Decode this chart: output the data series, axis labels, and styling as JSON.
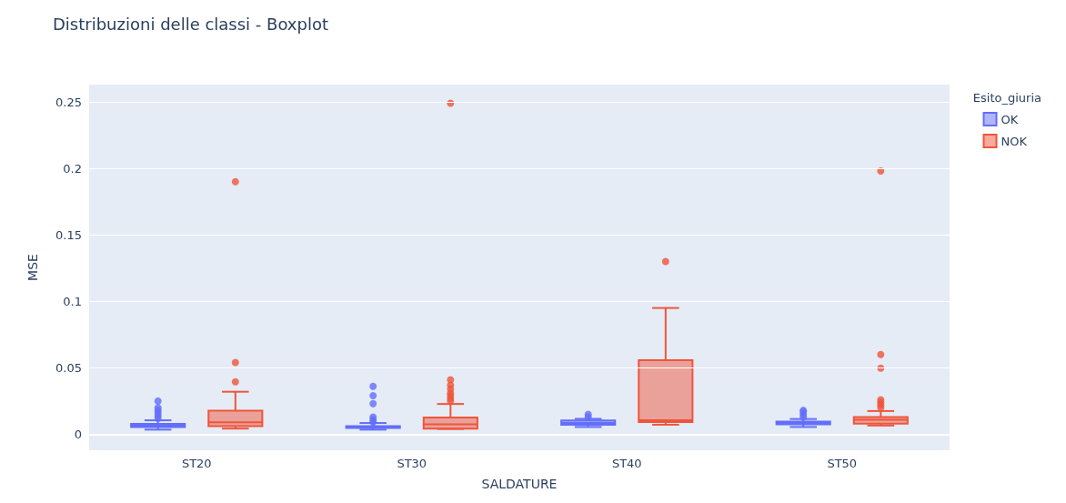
{
  "chart_data": {
    "type": "box",
    "title": "Distribuzioni delle classi - Boxplot",
    "xlabel": "SALDATURE",
    "ylabel": "MSE",
    "legend_title": "Esito_giuria",
    "categories": [
      "ST20",
      "ST30",
      "ST40",
      "ST50"
    ],
    "series": [
      {
        "name": "OK",
        "color": "#636efa",
        "boxes": [
          {
            "low": 0.0035,
            "q1": 0.0055,
            "median": 0.0065,
            "q3": 0.0078,
            "high": 0.0105,
            "outliers": [
              0.012,
              0.014,
              0.016,
              0.018,
              0.02,
              0.025
            ]
          },
          {
            "low": 0.0035,
            "q1": 0.0048,
            "median": 0.0055,
            "q3": 0.0062,
            "high": 0.0085,
            "outliers": [
              0.009,
              0.011,
              0.013,
              0.023,
              0.029,
              0.036
            ]
          },
          {
            "low": 0.0055,
            "q1": 0.0072,
            "median": 0.0085,
            "q3": 0.0104,
            "high": 0.0116,
            "outliers": [
              0.013,
              0.015
            ]
          },
          {
            "low": 0.0055,
            "q1": 0.0075,
            "median": 0.0085,
            "q3": 0.0095,
            "high": 0.0115,
            "outliers": [
              0.013,
              0.015,
              0.017,
              0.018
            ]
          }
        ]
      },
      {
        "name": "NOK",
        "color": "#ef553b",
        "boxes": [
          {
            "low": 0.0043,
            "q1": 0.0061,
            "median": 0.009,
            "q3": 0.0178,
            "high": 0.032,
            "outliers": [
              0.0395,
              0.054,
              0.19
            ]
          },
          {
            "low": 0.004,
            "q1": 0.0043,
            "median": 0.0075,
            "q3": 0.0127,
            "high": 0.0228,
            "outliers": [
              0.025,
              0.027,
              0.029,
              0.031,
              0.034,
              0.037,
              0.041,
              0.249
            ]
          },
          {
            "low": 0.0072,
            "q1": 0.0092,
            "median": 0.0105,
            "q3": 0.0558,
            "high": 0.095,
            "outliers": [
              0.13
            ]
          },
          {
            "low": 0.0066,
            "q1": 0.008,
            "median": 0.011,
            "q3": 0.0129,
            "high": 0.0175,
            "outliers": [
              0.02,
              0.022,
              0.024,
              0.026,
              0.0497,
              0.06,
              0.198
            ]
          }
        ]
      }
    ],
    "ylim": [
      -0.012,
      0.263
    ],
    "yticks": [
      0,
      0.05,
      0.1,
      0.15,
      0.2,
      0.25
    ],
    "grid": "y",
    "legend": "top right"
  }
}
